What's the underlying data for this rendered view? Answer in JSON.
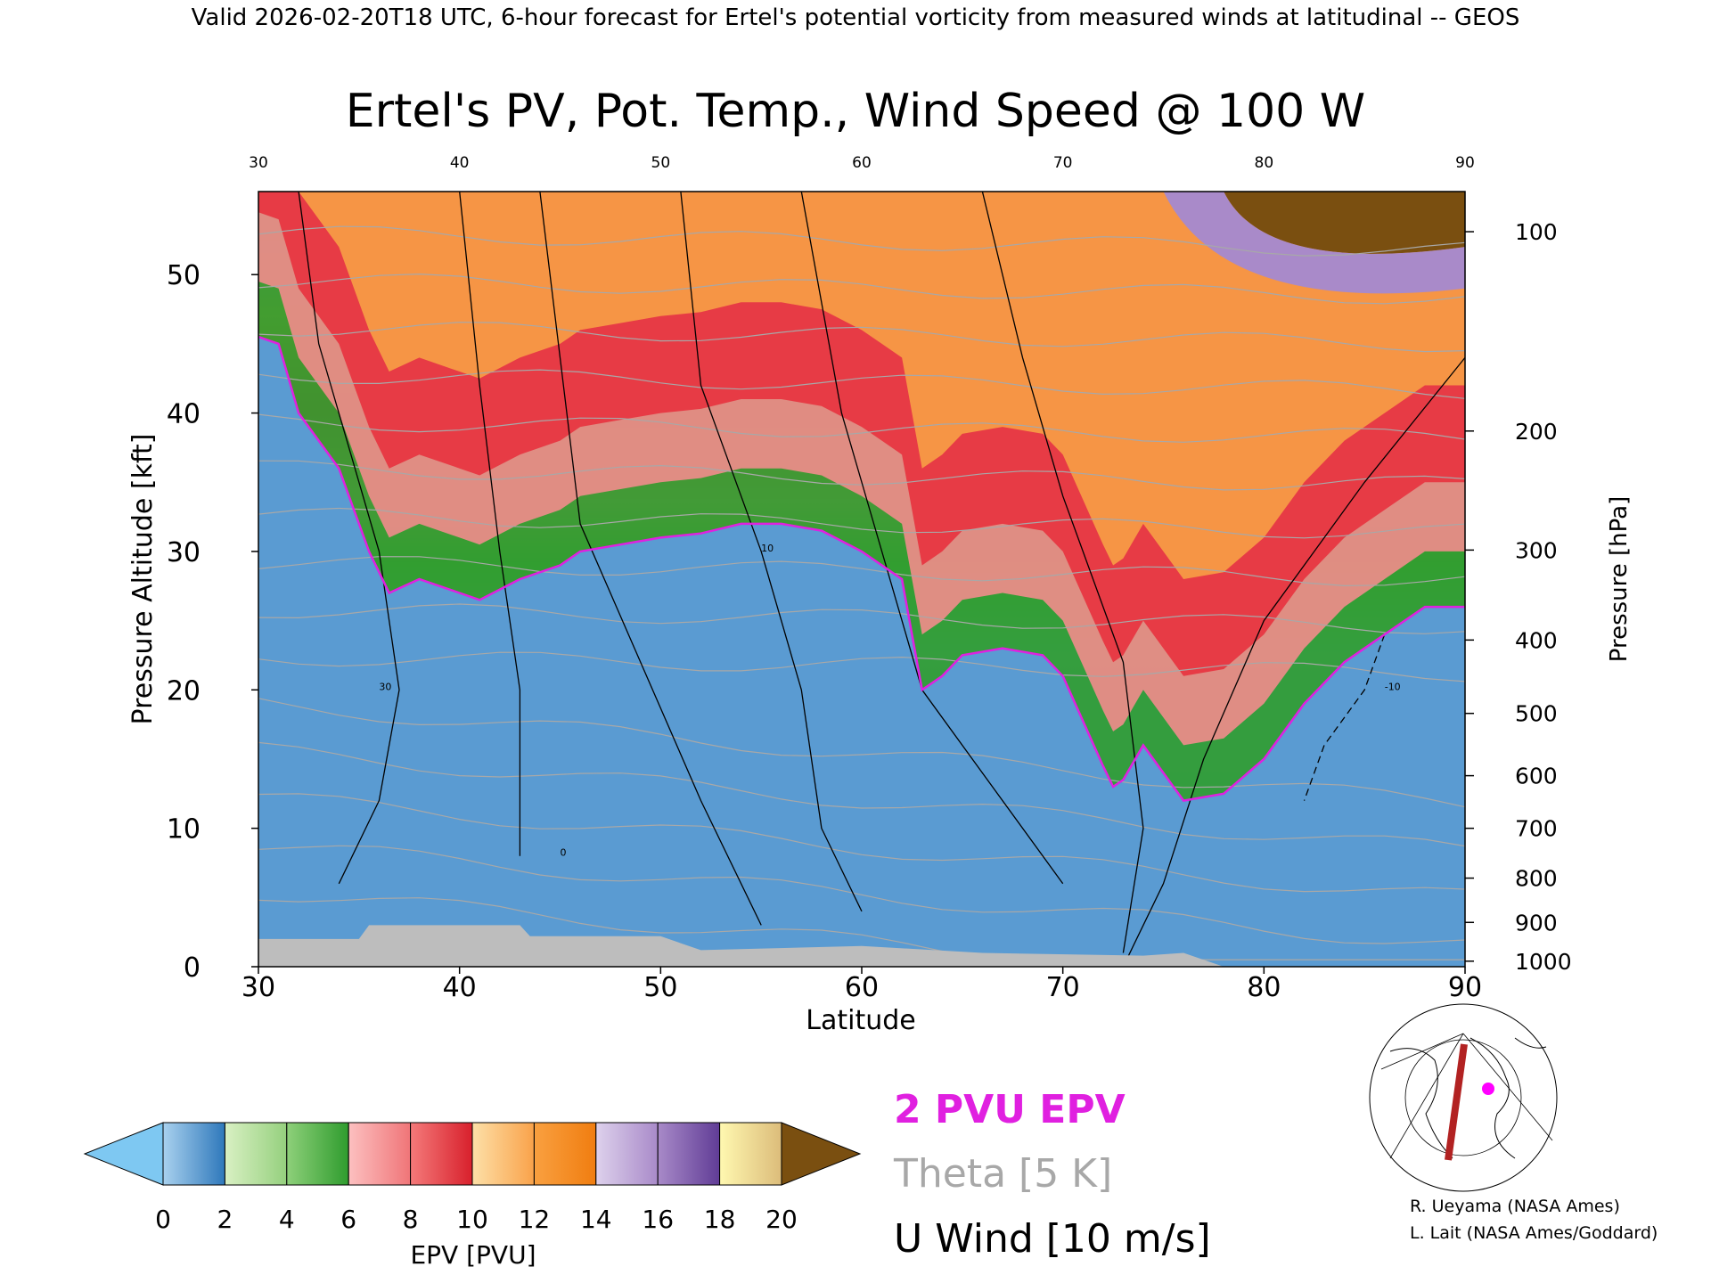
{
  "header": "Valid 2026-02-20T18 UTC, 6-hour forecast for Ertel's potential vorticity from measured winds at latitudinal -- GEOS",
  "chart_data": {
    "type": "heatmap",
    "title": "Ertel's PV, Pot. Temp., Wind Speed @ 100 W",
    "xlabel": "Latitude",
    "ylabel": "Pressure Altitude [kft]",
    "ylabel_right": "Pressure [hPa]",
    "xlim": [
      30,
      90
    ],
    "ylim": [
      0,
      56
    ],
    "x_ticks": [
      30,
      40,
      50,
      60,
      70,
      80,
      90
    ],
    "y_ticks": [
      0,
      10,
      20,
      30,
      40,
      50
    ],
    "pressure_ticks": [
      {
        "hPa": 100,
        "kft": 53.1
      },
      {
        "hPa": 200,
        "kft": 38.7
      },
      {
        "hPa": 300,
        "kft": 30.1
      },
      {
        "hPa": 400,
        "kft": 23.6
      },
      {
        "hPa": 500,
        "kft": 18.3
      },
      {
        "hPa": 600,
        "kft": 13.8
      },
      {
        "hPa": 700,
        "kft": 10.0
      },
      {
        "hPa": 800,
        "kft": 6.4
      },
      {
        "hPa": 900,
        "kft": 3.2
      },
      {
        "hPa": 1000,
        "kft": 0.4
      }
    ],
    "colorbar": {
      "label": "EPV [PVU]",
      "ticks": [
        "0",
        "2",
        "4",
        "6",
        "8",
        "10",
        "12",
        "14",
        "16",
        "18",
        "20"
      ],
      "under_color": "#7ec8f2",
      "over_color": "#7a4f10",
      "segment_gradients": [
        [
          "#a9d1ee",
          "#2e78bb"
        ],
        [
          "#d9f0c3",
          "#95d07e"
        ],
        [
          "#8ed07a",
          "#2f9c2e"
        ],
        [
          "#fcc0c0",
          "#f07578"
        ],
        [
          "#f47a7a",
          "#d8202c"
        ],
        [
          "#fde0a8",
          "#f9a24a"
        ],
        [
          "#f9a040",
          "#f07d10"
        ],
        [
          "#ddd1ec",
          "#a98ac9"
        ],
        [
          "#a88ac8",
          "#603c96"
        ],
        [
          "#fff8b0",
          "#dcbc7a"
        ]
      ]
    },
    "pv_2pvu_boundary_kft": [
      [
        30,
        45.5
      ],
      [
        31,
        45
      ],
      [
        32,
        40
      ],
      [
        34,
        36
      ],
      [
        35.5,
        30
      ],
      [
        36.5,
        27
      ],
      [
        38,
        28
      ],
      [
        40,
        27
      ],
      [
        41,
        26.5
      ],
      [
        43,
        28
      ],
      [
        45,
        29
      ],
      [
        46,
        30
      ],
      [
        48,
        30.5
      ],
      [
        50,
        31
      ],
      [
        52,
        31.3
      ],
      [
        54,
        32
      ],
      [
        56,
        32
      ],
      [
        58,
        31.5
      ],
      [
        60,
        30
      ],
      [
        61,
        29
      ],
      [
        62,
        28
      ],
      [
        63,
        20
      ],
      [
        64,
        21
      ],
      [
        65,
        22.5
      ],
      [
        67,
        23
      ],
      [
        69,
        22.5
      ],
      [
        70,
        21
      ],
      [
        72,
        14.5
      ],
      [
        72.5,
        13
      ],
      [
        73,
        13.5
      ],
      [
        74,
        16
      ],
      [
        76,
        12
      ],
      [
        78,
        12.5
      ],
      [
        80,
        15
      ],
      [
        82,
        19
      ],
      [
        84,
        22
      ],
      [
        86,
        24
      ],
      [
        88,
        26
      ],
      [
        90,
        26
      ]
    ],
    "theta_contours_K": [
      270,
      280,
      290,
      300,
      310,
      320,
      330,
      340,
      350,
      360,
      370,
      380,
      390,
      400,
      410,
      420
    ],
    "u_wind_contour_labels": [
      "0",
      "10",
      "30",
      "-10"
    ],
    "legend": [
      {
        "label": "2 PVU EPV",
        "color": "#e020e0"
      },
      {
        "label": "Theta [5 K]",
        "color": "#a8a8a8"
      },
      {
        "label": "U Wind [10 m/s]",
        "color": "#000000"
      }
    ],
    "inset_map": {
      "marker_color": "#ff00ff",
      "section_color": "#b22222"
    },
    "credits": [
      "R. Ueyama (NASA Ames)",
      "L. Lait (NASA Ames/Goddard)"
    ]
  }
}
